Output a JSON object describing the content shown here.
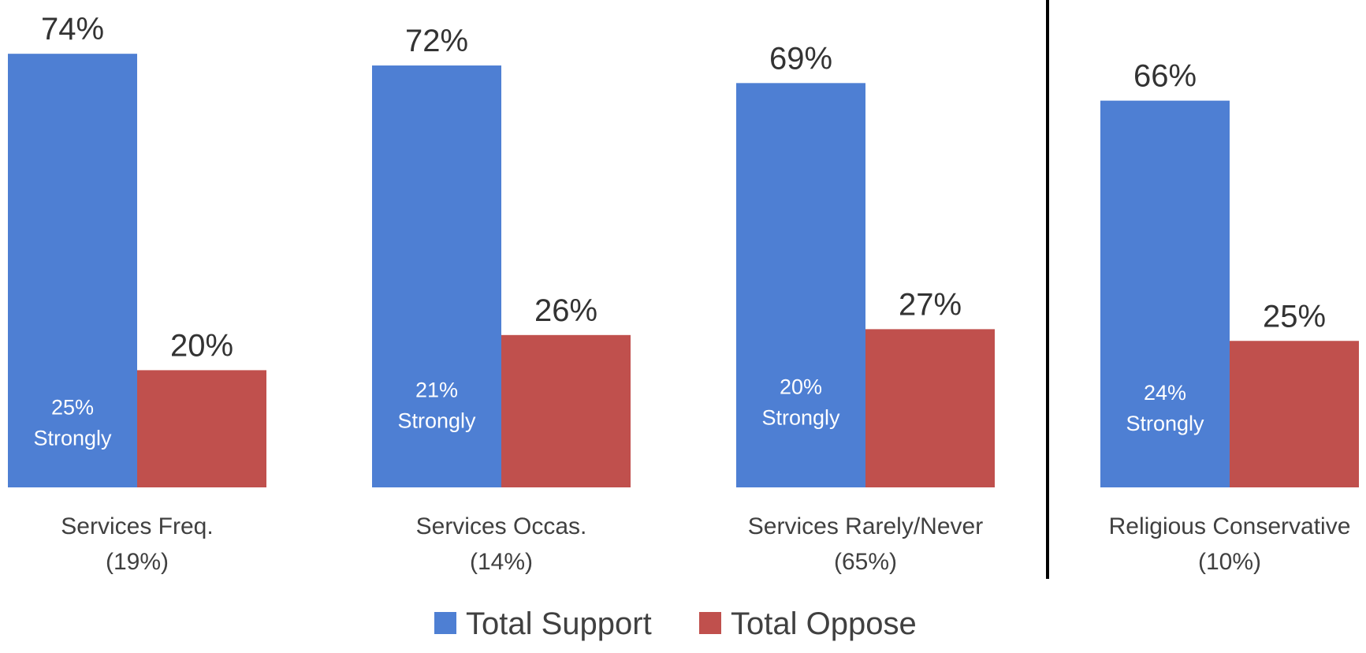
{
  "chart_data": {
    "type": "bar",
    "categories": [
      {
        "line1": "Services Freq.",
        "line2": "(19%)"
      },
      {
        "line1": "Services Occas.",
        "line2": "(14%)"
      },
      {
        "line1": "Services Rarely/Never",
        "line2": "(65%)"
      },
      {
        "line1": "Religious Conservative",
        "line2": "(10%)"
      }
    ],
    "series": [
      {
        "name": "Total Support",
        "color": "#4E7FD3",
        "values": [
          74,
          72,
          69,
          66
        ],
        "labels": [
          "74%",
          "72%",
          "69%",
          "66%"
        ],
        "inner_labels": [
          {
            "line1": "25%",
            "line2": "Strongly"
          },
          {
            "line1": "21%",
            "line2": "Strongly"
          },
          {
            "line1": "20%",
            "line2": "Strongly"
          },
          {
            "line1": "24%",
            "line2": "Strongly"
          }
        ]
      },
      {
        "name": "Total Oppose",
        "color": "#C0504D",
        "values": [
          20,
          26,
          27,
          25
        ],
        "labels": [
          "20%",
          "26%",
          "27%",
          "25%"
        ]
      }
    ],
    "title": "",
    "xlabel": "",
    "ylabel": "",
    "legend": "bottom",
    "separator_after_category": 3,
    "grid": false
  }
}
